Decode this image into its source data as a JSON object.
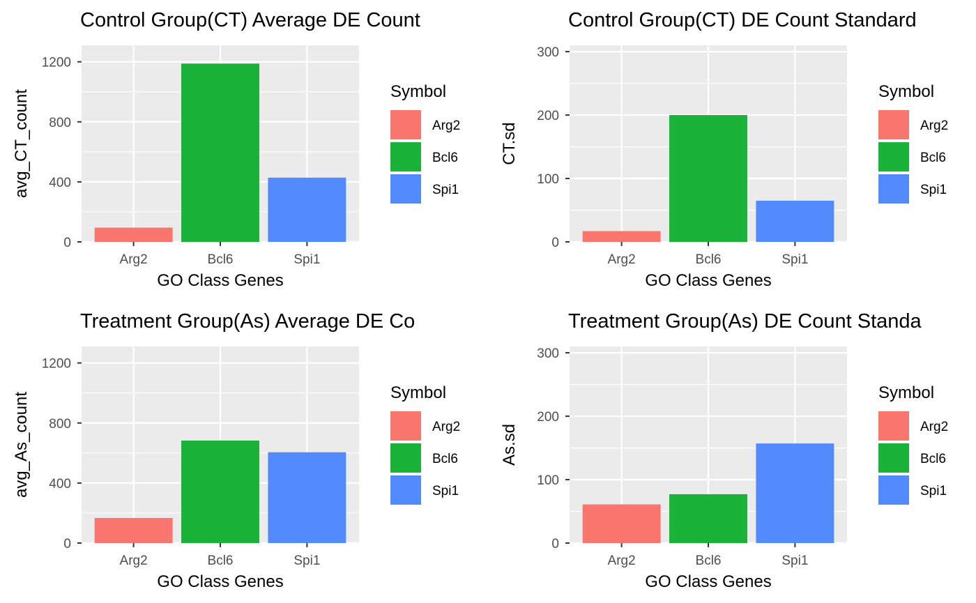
{
  "colors": {
    "Arg2": "#F8766D",
    "Bcl6": "#1BB23A",
    "Spi1": "#538BFE",
    "panel_background": "#EBEBEB",
    "gridlines": "#FFFFFF",
    "tick_text": "#4D4D4D"
  },
  "chart_data": [
    {
      "type": "bar",
      "title": "Control Group(CT) Average DE Count",
      "xlabel": "GO Class Genes",
      "ylabel": "avg_CT_count",
      "categories": [
        "Arg2",
        "Bcl6",
        "Spi1"
      ],
      "values": [
        95,
        1188,
        428
      ],
      "ylim": [
        0,
        1310
      ],
      "yticks": [
        0,
        400,
        800,
        1200
      ],
      "grid": true,
      "legend": {
        "title": "Symbol",
        "position": "right",
        "entries": [
          "Arg2",
          "Bcl6",
          "Spi1"
        ]
      }
    },
    {
      "type": "bar",
      "title": "Control Group(CT) DE Count Standard",
      "xlabel": "GO Class Genes",
      "ylabel": "CT.sd",
      "categories": [
        "Arg2",
        "Bcl6",
        "Spi1"
      ],
      "values": [
        17,
        200,
        65
      ],
      "ylim": [
        0,
        310
      ],
      "yticks": [
        0,
        100,
        200,
        300
      ],
      "grid": true,
      "legend": {
        "title": "Symbol",
        "position": "right",
        "entries": [
          "Arg2",
          "Bcl6",
          "Spi1"
        ]
      }
    },
    {
      "type": "bar",
      "title": "Treatment Group(As) Average DE Co",
      "xlabel": "GO Class Genes",
      "ylabel": "avg_As_count",
      "categories": [
        "Arg2",
        "Bcl6",
        "Spi1"
      ],
      "values": [
        167,
        683,
        605
      ],
      "ylim": [
        0,
        1310
      ],
      "yticks": [
        0,
        400,
        800,
        1200
      ],
      "grid": true,
      "legend": {
        "title": "Symbol",
        "position": "right",
        "entries": [
          "Arg2",
          "Bcl6",
          "Spi1"
        ]
      }
    },
    {
      "type": "bar",
      "title": "Treatment Group(As) DE Count Standa",
      "xlabel": "GO Class Genes",
      "ylabel": "As.sd",
      "categories": [
        "Arg2",
        "Bcl6",
        "Spi1"
      ],
      "values": [
        61,
        77,
        157
      ],
      "ylim": [
        0,
        310
      ],
      "yticks": [
        0,
        100,
        200,
        300
      ],
      "grid": true,
      "legend": {
        "title": "Symbol",
        "position": "right",
        "entries": [
          "Arg2",
          "Bcl6",
          "Spi1"
        ]
      }
    }
  ]
}
